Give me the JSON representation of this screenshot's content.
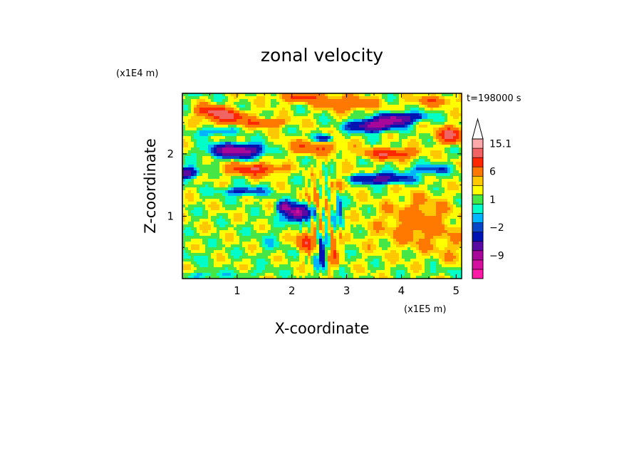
{
  "chart_data": {
    "type": "heatmap",
    "title": "zonal velocity",
    "xlabel": "X-coordinate",
    "ylabel": "Z-coordinate",
    "x_unit": "(x1E5 m)",
    "y_unit": "(x1E4 m)",
    "time_label": "t=198000 s",
    "xlim": [
      0.0,
      5.1
    ],
    "ylim": [
      0.0,
      2.97
    ],
    "x_ticks": [
      1,
      2,
      3,
      4,
      5
    ],
    "y_ticks": [
      1,
      2
    ],
    "colorbar": {
      "labels": [
        "15.1",
        "6",
        "1",
        "-2",
        "-9"
      ],
      "levels": [
        -15,
        -12,
        -9,
        -6,
        -3,
        -2,
        -1,
        0,
        1,
        2,
        3,
        6,
        9,
        12,
        15.1
      ],
      "colors": [
        "#ff1aa6",
        "#d4119e",
        "#a8089a",
        "#5a0aa0",
        "#0014b4",
        "#0a46c8",
        "#00b4ff",
        "#00ffc8",
        "#46e646",
        "#ffff00",
        "#ffc800",
        "#ff7800",
        "#ff2800",
        "#f06464",
        "#ffaaaa"
      ],
      "extend": "max"
    },
    "features": [
      {
        "x": 0.8,
        "z": 2.6,
        "sx": 0.35,
        "sz": 0.1,
        "v": 9
      },
      {
        "x": 0.5,
        "z": 2.7,
        "sx": 0.25,
        "sz": 0.08,
        "v": 7
      },
      {
        "x": 1.5,
        "z": 2.5,
        "sx": 0.4,
        "sz": 0.07,
        "v": 5
      },
      {
        "x": 2.2,
        "z": 2.9,
        "sx": 0.5,
        "sz": 0.08,
        "v": 5
      },
      {
        "x": 1.0,
        "z": 2.05,
        "sx": 0.45,
        "sz": 0.1,
        "v": -13
      },
      {
        "x": 0.1,
        "z": 1.7,
        "sx": 0.2,
        "sz": 0.08,
        "v": -9
      },
      {
        "x": 1.3,
        "z": 1.75,
        "sx": 0.45,
        "sz": 0.09,
        "v": 8
      },
      {
        "x": 2.4,
        "z": 2.1,
        "sx": 0.5,
        "sz": 0.1,
        "v": 5
      },
      {
        "x": 1.1,
        "z": 1.4,
        "sx": 0.4,
        "sz": 0.07,
        "v": -5
      },
      {
        "x": 2.1,
        "z": 1.05,
        "sx": 0.2,
        "sz": 0.12,
        "v": -14
      },
      {
        "x": 1.85,
        "z": 1.15,
        "sx": 0.12,
        "sz": 0.08,
        "v": -10
      },
      {
        "x": 3.0,
        "z": 1.6,
        "sx": 0.3,
        "sz": 0.12,
        "v": 4
      },
      {
        "x": 3.45,
        "z": 2.45,
        "sx": 0.35,
        "sz": 0.09,
        "v": -12
      },
      {
        "x": 3.9,
        "z": 2.55,
        "sx": 0.3,
        "sz": 0.09,
        "v": -12
      },
      {
        "x": 3.05,
        "z": 2.8,
        "sx": 0.45,
        "sz": 0.1,
        "v": 5
      },
      {
        "x": 4.6,
        "z": 2.85,
        "sx": 0.4,
        "sz": 0.08,
        "v": 4
      },
      {
        "x": 4.9,
        "z": 2.3,
        "sx": 0.25,
        "sz": 0.12,
        "v": 9
      },
      {
        "x": 4.3,
        "z": 2.6,
        "sx": 0.2,
        "sz": 0.06,
        "v": -4
      },
      {
        "x": 3.8,
        "z": 2.0,
        "sx": 0.45,
        "sz": 0.08,
        "v": 8
      },
      {
        "x": 3.5,
        "z": 1.6,
        "sx": 0.6,
        "sz": 0.08,
        "v": -9
      },
      {
        "x": 4.5,
        "z": 1.75,
        "sx": 0.4,
        "sz": 0.08,
        "v": -4
      },
      {
        "x": 4.3,
        "z": 0.9,
        "sx": 0.6,
        "sz": 0.4,
        "v": 3.5
      },
      {
        "x": 4.9,
        "z": 0.5,
        "sx": 0.3,
        "sz": 0.3,
        "v": 1.2
      },
      {
        "x": 3.4,
        "z": 0.7,
        "sx": 0.25,
        "sz": 0.3,
        "v": 0.6
      },
      {
        "x": 2.25,
        "z": 0.6,
        "sx": 0.15,
        "sz": 0.15,
        "v": 7
      },
      {
        "x": 2.55,
        "z": 0.4,
        "sx": 0.1,
        "sz": 0.3,
        "v": -4
      },
      {
        "x": 2.75,
        "z": 0.45,
        "sx": 0.08,
        "sz": 0.25,
        "v": 5
      },
      {
        "x": 2.45,
        "z": 1.3,
        "sx": 0.1,
        "sz": 0.2,
        "v": 3
      },
      {
        "x": 2.85,
        "z": 1.1,
        "sx": 0.08,
        "sz": 0.2,
        "v": -3
      },
      {
        "x": 1.6,
        "z": 0.6,
        "sx": 0.25,
        "sz": 0.25,
        "v": -1
      },
      {
        "x": 0.2,
        "z": 0.35,
        "sx": 0.3,
        "sz": 0.1,
        "v": -1
      },
      {
        "x": 0.4,
        "z": 0.05,
        "sx": 0.35,
        "sz": 0.06,
        "v": -2.5
      },
      {
        "x": 1.3,
        "z": 0.1,
        "sx": 0.3,
        "sz": 0.06,
        "v": -1.5
      },
      {
        "x": 4.7,
        "z": 0.1,
        "sx": 0.25,
        "sz": 0.06,
        "v": -1.5
      },
      {
        "x": 0.6,
        "z": 2.35,
        "sx": 0.3,
        "sz": 0.06,
        "v": -4
      },
      {
        "x": 0.2,
        "z": 2.95,
        "sx": 0.25,
        "sz": 0.06,
        "v": -1.5
      },
      {
        "x": 2.6,
        "z": 2.25,
        "sx": 0.15,
        "sz": 0.06,
        "v": -6
      }
    ]
  }
}
